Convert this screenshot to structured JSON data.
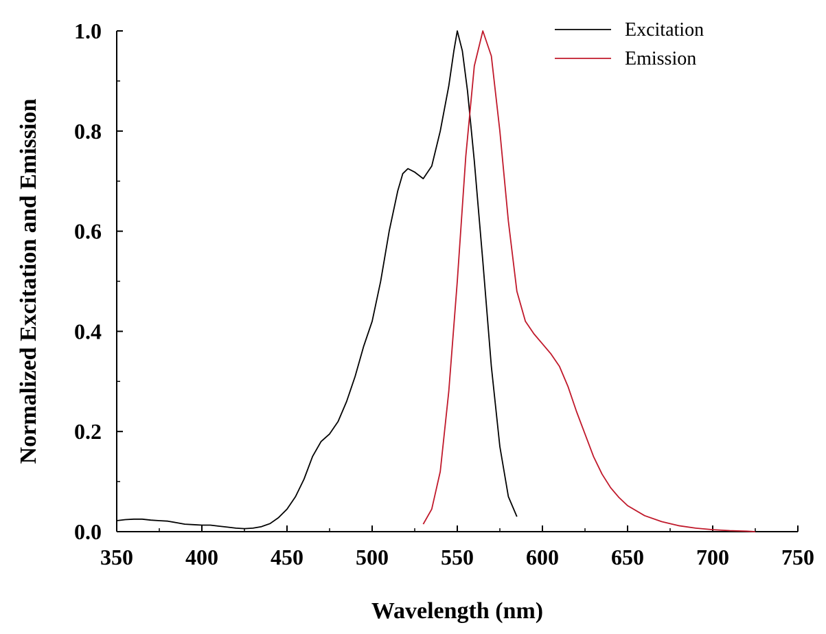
{
  "chart_data": {
    "type": "line",
    "title": "",
    "xlabel": "Wavelength (nm)",
    "ylabel": "Normalized Excitation and Emission",
    "xlim": [
      350,
      750
    ],
    "ylim": [
      0.0,
      1.0
    ],
    "x_ticks": [
      350,
      400,
      450,
      500,
      550,
      600,
      650,
      700,
      750
    ],
    "x_tick_labels": [
      "350",
      "400",
      "450",
      "500",
      "550",
      "600",
      "650",
      "700",
      "750"
    ],
    "y_ticks": [
      0.0,
      0.2,
      0.4,
      0.6,
      0.8,
      1.0
    ],
    "y_tick_labels": [
      "0.0",
      "0.2",
      "0.4",
      "0.6",
      "0.8",
      "1.0"
    ],
    "grid": false,
    "legend_position": "top-right",
    "series": [
      {
        "name": "Excitation",
        "color": "#000000",
        "points": [
          [
            350,
            0.022
          ],
          [
            355,
            0.024
          ],
          [
            360,
            0.025
          ],
          [
            365,
            0.025
          ],
          [
            370,
            0.023
          ],
          [
            375,
            0.022
          ],
          [
            380,
            0.021
          ],
          [
            385,
            0.018
          ],
          [
            390,
            0.015
          ],
          [
            395,
            0.014
          ],
          [
            400,
            0.013
          ],
          [
            405,
            0.013
          ],
          [
            410,
            0.011
          ],
          [
            415,
            0.009
          ],
          [
            420,
            0.007
          ],
          [
            425,
            0.006
          ],
          [
            430,
            0.007
          ],
          [
            435,
            0.01
          ],
          [
            440,
            0.016
          ],
          [
            445,
            0.028
          ],
          [
            450,
            0.045
          ],
          [
            455,
            0.07
          ],
          [
            460,
            0.105
          ],
          [
            465,
            0.15
          ],
          [
            470,
            0.18
          ],
          [
            475,
            0.195
          ],
          [
            480,
            0.22
          ],
          [
            485,
            0.26
          ],
          [
            490,
            0.31
          ],
          [
            495,
            0.37
          ],
          [
            500,
            0.42
          ],
          [
            505,
            0.5
          ],
          [
            510,
            0.6
          ],
          [
            515,
            0.68
          ],
          [
            518,
            0.715
          ],
          [
            521,
            0.725
          ],
          [
            525,
            0.718
          ],
          [
            530,
            0.705
          ],
          [
            535,
            0.73
          ],
          [
            540,
            0.8
          ],
          [
            545,
            0.89
          ],
          [
            548,
            0.96
          ],
          [
            550,
            1.0
          ],
          [
            553,
            0.96
          ],
          [
            556,
            0.88
          ],
          [
            560,
            0.74
          ],
          [
            565,
            0.54
          ],
          [
            570,
            0.33
          ],
          [
            575,
            0.17
          ],
          [
            580,
            0.07
          ],
          [
            585,
            0.03
          ]
        ]
      },
      {
        "name": "Emission",
        "color": "#c0182a",
        "points": [
          [
            530,
            0.015
          ],
          [
            535,
            0.045
          ],
          [
            540,
            0.12
          ],
          [
            545,
            0.28
          ],
          [
            550,
            0.5
          ],
          [
            555,
            0.75
          ],
          [
            560,
            0.93
          ],
          [
            565,
            1.0
          ],
          [
            570,
            0.95
          ],
          [
            575,
            0.8
          ],
          [
            580,
            0.62
          ],
          [
            585,
            0.48
          ],
          [
            590,
            0.42
          ],
          [
            595,
            0.395
          ],
          [
            600,
            0.375
          ],
          [
            605,
            0.355
          ],
          [
            610,
            0.33
          ],
          [
            615,
            0.29
          ],
          [
            620,
            0.24
          ],
          [
            625,
            0.195
          ],
          [
            630,
            0.15
          ],
          [
            635,
            0.115
          ],
          [
            640,
            0.088
          ],
          [
            645,
            0.068
          ],
          [
            650,
            0.052
          ],
          [
            660,
            0.032
          ],
          [
            670,
            0.02
          ],
          [
            680,
            0.012
          ],
          [
            690,
            0.007
          ],
          [
            700,
            0.004
          ],
          [
            710,
            0.002
          ],
          [
            720,
            0.001
          ],
          [
            725,
            0.0
          ]
        ]
      }
    ]
  }
}
